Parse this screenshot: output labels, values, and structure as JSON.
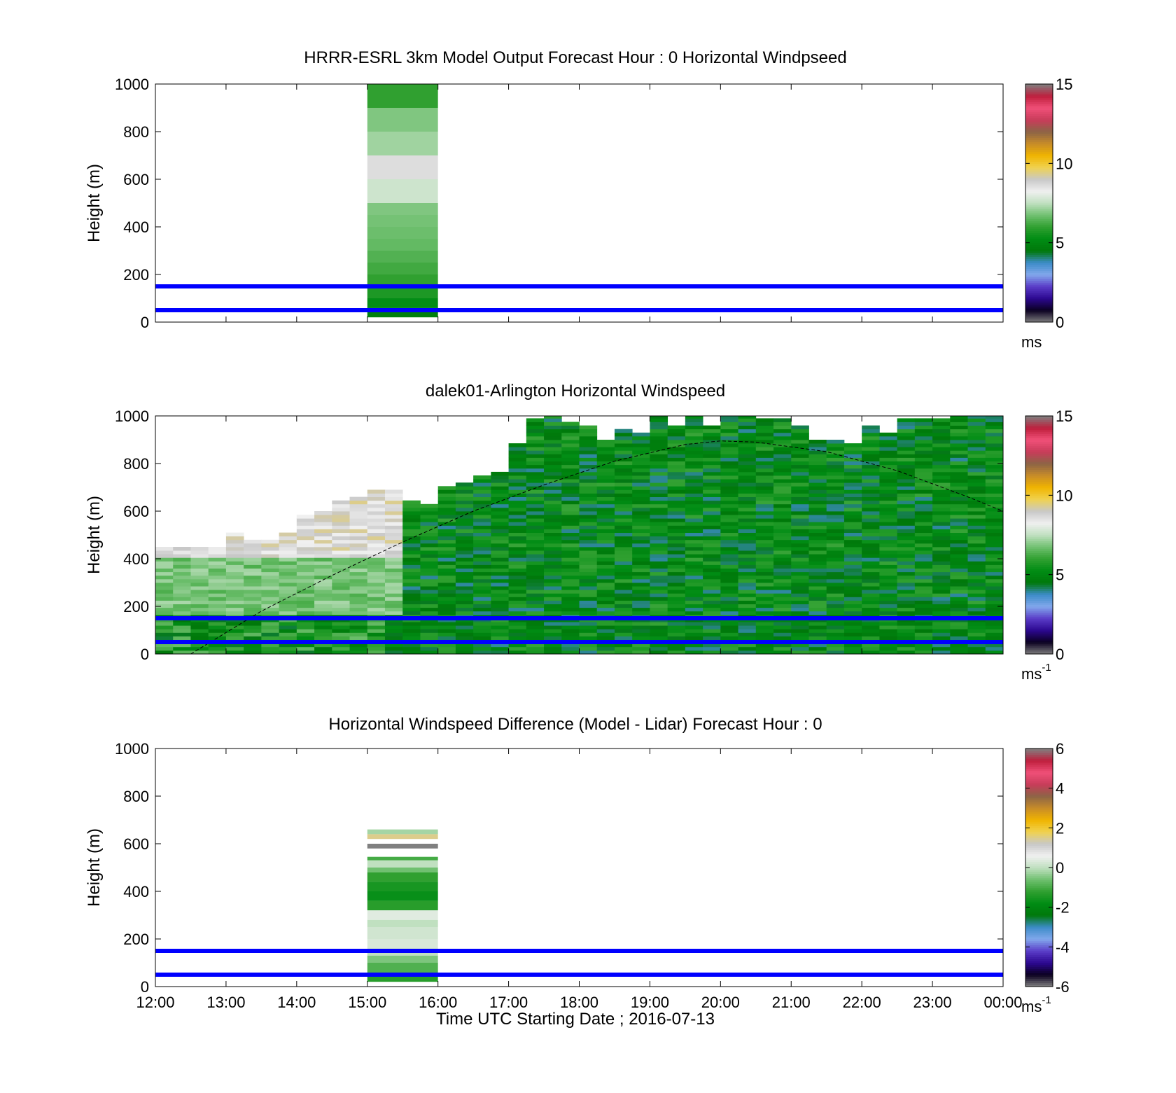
{
  "chart_data": [
    {
      "type": "heatmap",
      "title": "HRRR-ESRL 3km Model Output   Forecast Hour : 0 Horizontal Windpseed",
      "ylabel": "Height (m)",
      "xlabel": "",
      "xlim": [
        "12:00",
        "00:00"
      ],
      "ylim": [
        0,
        1000
      ],
      "yticks": [
        "0",
        "200",
        "400",
        "600",
        "800",
        "1000"
      ],
      "grid": false,
      "colorbar": {
        "ticks": [
          "0",
          "5",
          "10",
          "15"
        ],
        "range": [
          0,
          15
        ],
        "units": "ms",
        "units_sup": "",
        "colors": [
          "#808080",
          "#0a0020",
          "#2c0890",
          "#5a3cc8",
          "#82a8ec",
          "#3c8cc8",
          "#00780a",
          "#008c14",
          "#30a030",
          "#70c070",
          "#c0e0c0",
          "#f0f0f0",
          "#c8c8c8",
          "#f0d250",
          "#f0b400",
          "#c88c28",
          "#8c6446",
          "#c83c5a",
          "#f05078",
          "#be1e3c",
          "#808080"
        ]
      },
      "reference_lines_m": [
        50,
        150
      ],
      "reference_line_color": "#0000ff",
      "columns": [
        {
          "start": "15:00",
          "end": "16:00",
          "cells": [
            {
              "y0": 900,
              "y1": 1000,
              "v": 6.0
            },
            {
              "y0": 800,
              "y1": 900,
              "v": 6.9
            },
            {
              "y0": 700,
              "y1": 800,
              "v": 7.2
            },
            {
              "y0": 600,
              "y1": 700,
              "v": 8.6
            },
            {
              "y0": 500,
              "y1": 600,
              "v": 7.7
            },
            {
              "y0": 450,
              "y1": 500,
              "v": 6.9
            },
            {
              "y0": 400,
              "y1": 450,
              "v": 6.8
            },
            {
              "y0": 350,
              "y1": 400,
              "v": 6.7
            },
            {
              "y0": 300,
              "y1": 350,
              "v": 6.6
            },
            {
              "y0": 250,
              "y1": 300,
              "v": 6.4
            },
            {
              "y0": 200,
              "y1": 250,
              "v": 6.2
            },
            {
              "y0": 150,
              "y1": 200,
              "v": 6.0
            },
            {
              "y0": 100,
              "y1": 150,
              "v": 5.7
            },
            {
              "y0": 60,
              "y1": 100,
              "v": 5.3
            },
            {
              "y0": 20,
              "y1": 60,
              "v": 4.8
            }
          ]
        }
      ]
    },
    {
      "type": "heatmap",
      "title": "dalek01-Arlington  Horizontal Windspeed",
      "ylabel": "Height (m)",
      "xlabel": "",
      "xlim": [
        "12:00",
        "00:00"
      ],
      "ylim": [
        0,
        1000
      ],
      "yticks": [
        "0",
        "200",
        "400",
        "600",
        "800",
        "1000"
      ],
      "grid": false,
      "colorbar": {
        "ticks": [
          "0",
          "5",
          "10",
          "15"
        ],
        "range": [
          0,
          15
        ],
        "units": "ms",
        "units_sup": "-1",
        "colors": [
          "#808080",
          "#0a0020",
          "#2c0890",
          "#5a3cc8",
          "#82a8ec",
          "#3c8cc8",
          "#00780a",
          "#008c14",
          "#30a030",
          "#70c070",
          "#c0e0c0",
          "#f0f0f0",
          "#c8c8c8",
          "#f0d250",
          "#f0b400",
          "#c88c28",
          "#8c6446",
          "#c83c5a",
          "#f05078",
          "#be1e3c",
          "#808080"
        ]
      },
      "reference_lines_m": [
        50,
        150
      ],
      "reference_line_color": "#0000ff",
      "boundary_layer_curve": {
        "style": "dashed",
        "color": "#000000",
        "x": [
          "12:30",
          "13:30",
          "14:30",
          "15:30",
          "16:30",
          "17:30",
          "18:30",
          "19:30",
          "20:00",
          "20:30",
          "21:30",
          "22:30",
          "23:30",
          "00:00"
        ],
        "y": [
          0,
          180,
          330,
          470,
          600,
          710,
          810,
          880,
          895,
          890,
          850,
          770,
          660,
          600
        ]
      },
      "time_bins": [
        "12:00",
        "12:15",
        "12:30",
        "12:45",
        "13:00",
        "13:15",
        "13:30",
        "13:45",
        "14:00",
        "14:15",
        "14:30",
        "14:45",
        "15:00",
        "15:15",
        "15:30",
        "15:45",
        "16:00",
        "16:15",
        "16:30",
        "16:45",
        "17:00",
        "17:15",
        "17:30",
        "17:45",
        "18:00",
        "18:15",
        "18:30",
        "18:45",
        "19:00",
        "19:15",
        "19:30",
        "19:45",
        "20:00",
        "20:15",
        "20:30",
        "20:45",
        "21:00",
        "21:15",
        "21:30",
        "21:45",
        "22:00",
        "22:15",
        "22:30",
        "22:45",
        "23:00",
        "23:15",
        "23:30",
        "23:45"
      ],
      "top_of_data_m": [
        440,
        440,
        440,
        450,
        500,
        480,
        470,
        510,
        580,
        600,
        640,
        660,
        680,
        690,
        640,
        620,
        700,
        720,
        740,
        760,
        880,
        980,
        1000,
        970,
        950,
        900,
        940,
        920,
        1000,
        950,
        1000,
        960,
        1000,
        1000,
        990,
        990,
        950,
        900,
        900,
        880,
        950,
        920,
        980,
        990,
        980,
        1000,
        1000,
        1000
      ],
      "regime": {
        "stable_layer_until": "15:30",
        "stable_upper_values": 8.8,
        "stable_lower_values": 6.8,
        "daytime_values": 5.0
      }
    },
    {
      "type": "heatmap",
      "title": "Horizontal Windspeed Difference (Model - Lidar) Forecast Hour : 0",
      "ylabel": "Height (m)",
      "xlabel": "Time UTC  Starting Date ; 2016-07-13",
      "xlim": [
        "12:00",
        "00:00"
      ],
      "ylim": [
        0,
        1000
      ],
      "yticks": [
        "0",
        "200",
        "400",
        "600",
        "800",
        "1000"
      ],
      "xticks": [
        "12:00",
        "13:00",
        "14:00",
        "15:00",
        "16:00",
        "17:00",
        "18:00",
        "19:00",
        "20:00",
        "21:00",
        "22:00",
        "23:00",
        "00:00"
      ],
      "grid": false,
      "colorbar": {
        "ticks": [
          "-6",
          "-4",
          "-2",
          "0",
          "2",
          "4",
          "6"
        ],
        "range": [
          -6,
          6
        ],
        "units": "ms",
        "units_sup": "-1",
        "colors": [
          "#808080",
          "#0a0020",
          "#2c0890",
          "#5a3cc8",
          "#82a8ec",
          "#3c8cc8",
          "#00780a",
          "#008c14",
          "#30a030",
          "#70c070",
          "#c0e0c0",
          "#f0f0f0",
          "#c8c8c8",
          "#f0d250",
          "#f0b400",
          "#c88c28",
          "#8c6446",
          "#c83c5a",
          "#f05078",
          "#be1e3c",
          "#808080"
        ]
      },
      "reference_lines_m": [
        50,
        150
      ],
      "reference_line_color": "#0000ff",
      "columns": [
        {
          "start": "15:00",
          "end": "16:00",
          "cells": [
            {
              "y0": 640,
              "y1": 660,
              "v": -0.2
            },
            {
              "y0": 620,
              "y1": 640,
              "v": 1.5
            },
            {
              "y0": 580,
              "y1": 600,
              "v": 6.0
            },
            {
              "y0": 530,
              "y1": 545,
              "v": -1.0
            },
            {
              "y0": 500,
              "y1": 530,
              "v": 0.0
            },
            {
              "y0": 480,
              "y1": 500,
              "v": -0.6
            },
            {
              "y0": 440,
              "y1": 480,
              "v": -1.2
            },
            {
              "y0": 400,
              "y1": 440,
              "v": -1.5
            },
            {
              "y0": 360,
              "y1": 400,
              "v": -1.7
            },
            {
              "y0": 320,
              "y1": 360,
              "v": -1.3
            },
            {
              "y0": 280,
              "y1": 320,
              "v": 0.4
            },
            {
              "y0": 250,
              "y1": 280,
              "v": 0.0
            },
            {
              "y0": 200,
              "y1": 250,
              "v": 0.2
            },
            {
              "y0": 160,
              "y1": 200,
              "v": 0.3
            },
            {
              "y0": 130,
              "y1": 160,
              "v": 0.0
            },
            {
              "y0": 100,
              "y1": 130,
              "v": -0.5
            },
            {
              "y0": 60,
              "y1": 100,
              "v": -0.9
            },
            {
              "y0": 20,
              "y1": 60,
              "v": -1.3
            }
          ]
        }
      ]
    }
  ]
}
